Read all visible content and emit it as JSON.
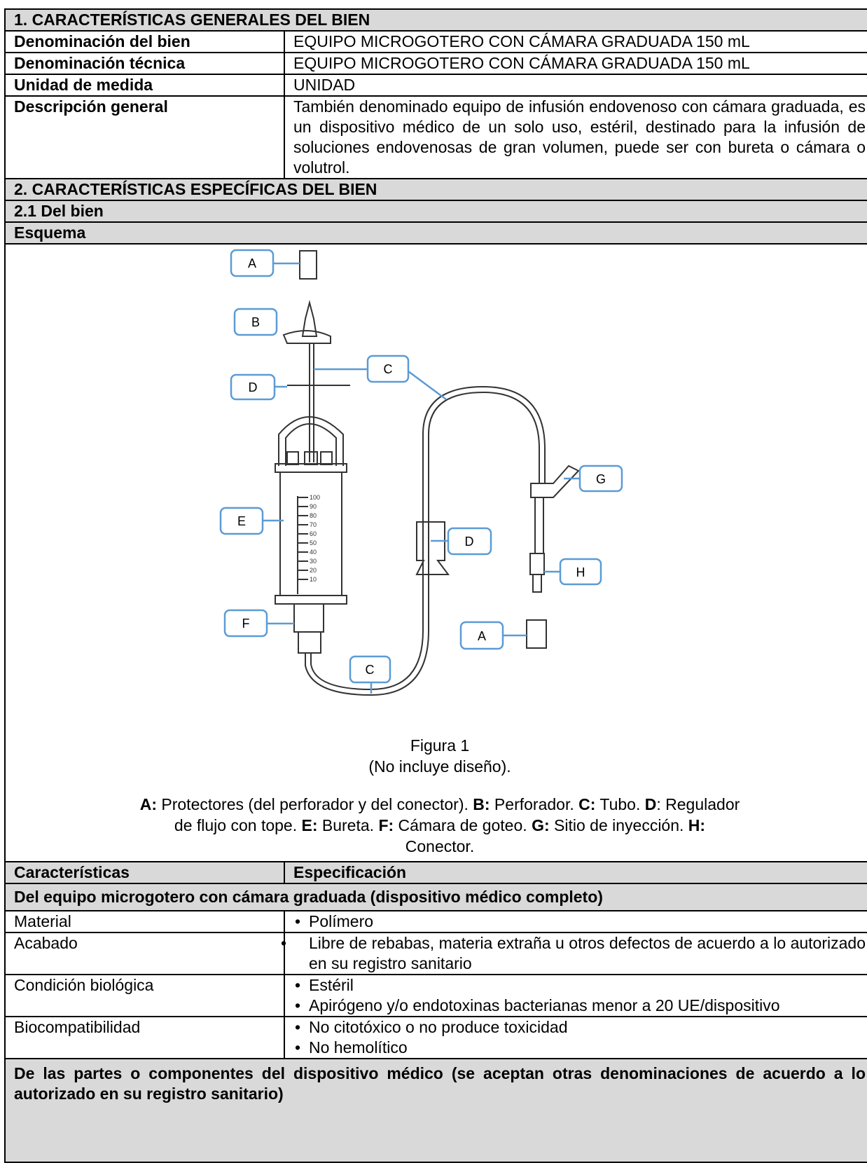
{
  "section1": {
    "title": "1. CARACTERÍSTICAS GENERALES DEL BIEN",
    "rows": [
      [
        "Denominación del bien",
        "EQUIPO MICROGOTERO CON CÁMARA GRADUADA 150 mL"
      ],
      [
        "Denominación técnica",
        "EQUIPO MICROGOTERO CON CÁMARA GRADUADA 150 mL"
      ],
      [
        "Unidad de medida",
        "UNIDAD"
      ],
      [
        "Descripción general",
        "También denominado equipo de infusión endovenoso con cámara graduada, es un dispositivo médico de un solo uso, estéril, destinado para la infusión de soluciones endovenosas de gran volumen, puede ser con bureta o cámara o volutrol."
      ]
    ]
  },
  "section2": {
    "title": "2. CARACTERÍSTICAS ESPECÍFICAS DEL BIEN",
    "subtitle": "2.1 Del bien",
    "scheme_title": "Esquema"
  },
  "diagram": {
    "labels": [
      "A",
      "B",
      "C",
      "D",
      "E",
      "F",
      "C",
      "D",
      "G",
      "H",
      "A"
    ],
    "scale": [
      "100",
      "90",
      "80",
      "70",
      "60",
      "50",
      "40",
      "30",
      "20",
      "10"
    ]
  },
  "figure": {
    "caption": "Figura 1",
    "note": "(No incluye diseño).",
    "legend": [
      {
        "key": "A:",
        "text": " Protectores (del perforador y del conector). "
      },
      {
        "key": "B:",
        "text": " Perforador. "
      },
      {
        "key": "C:",
        "text": " Tubo. "
      },
      {
        "key": "D",
        "text": ": Regulador de flujo con tope. "
      },
      {
        "key": "E:",
        "text": " Bureta. "
      },
      {
        "key": "F:",
        "text": " Cámara de goteo. "
      },
      {
        "key": "G:",
        "text": " Sitio de inyección. "
      },
      {
        "key": "H:",
        "text": " Conector."
      }
    ]
  },
  "spec_table": {
    "headers": [
      "Características",
      "Especificación"
    ],
    "group1": "Del equipo microgotero con cámara graduada (dispositivo médico completo)",
    "rows": [
      {
        "name": "Material",
        "items": [
          "Polímero"
        ]
      },
      {
        "name": "Acabado",
        "items": [
          "Libre de rebabas, materia extraña u otros defectos de acuerdo a lo autorizado en su registro sanitario"
        ]
      },
      {
        "name": "Condición biológica",
        "items": [
          "Estéril",
          "Apirógeno y/o endotoxinas bacterianas menor a 20 UE/dispositivo"
        ]
      },
      {
        "name": "Biocompatibilidad",
        "items": [
          "No citotóxico o no produce toxicidad",
          "No hemolítico"
        ]
      }
    ],
    "group2": "De las partes o componentes del dispositivo médico (se aceptan otras denominaciones de acuerdo a lo autorizado en su registro sanitario)"
  }
}
